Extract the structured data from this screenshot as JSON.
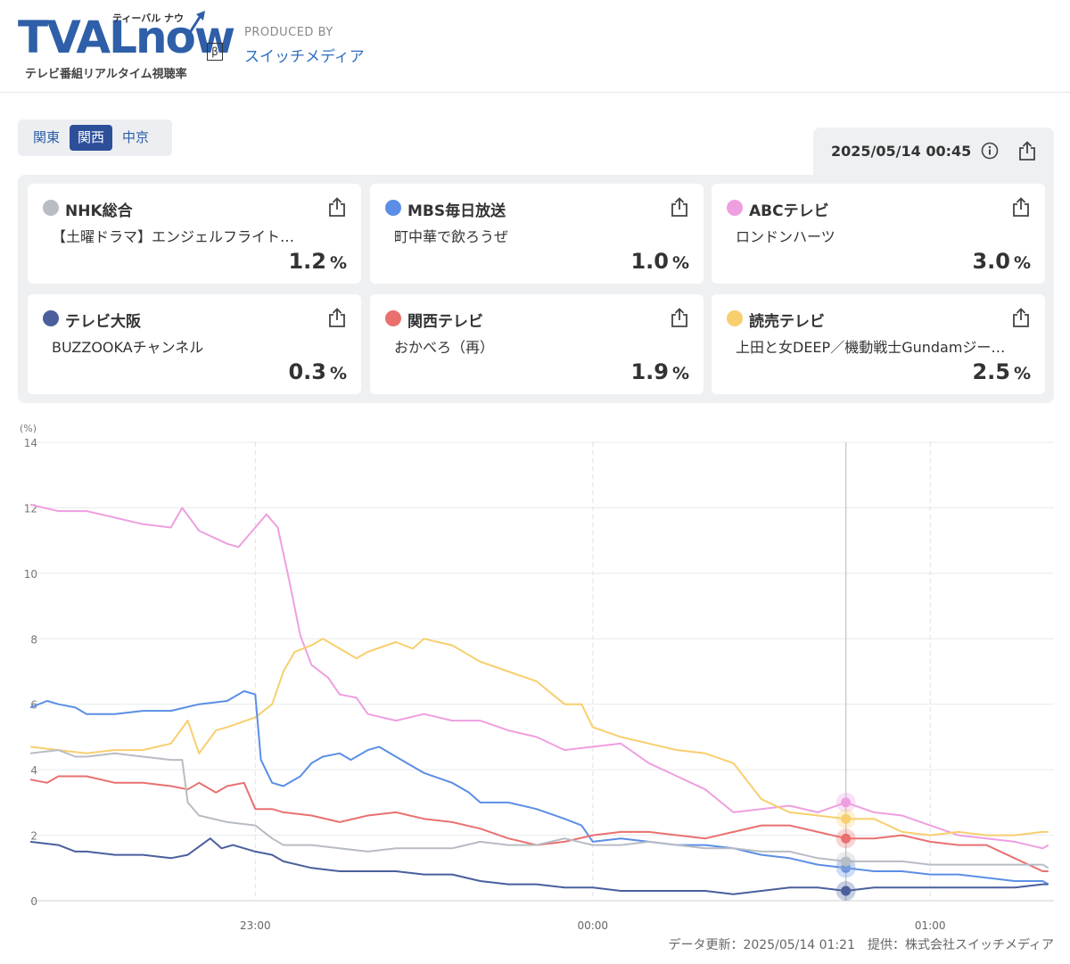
{
  "header": {
    "logo_text": "TVALnow",
    "logo_ruby": "ティーバル ナウ",
    "logo_beta": "β",
    "logo_sub": "テレビ番組リアルタイム視聴率",
    "produced_by": "PRODUCED BY",
    "producer": "スイッチメディア"
  },
  "regions": [
    {
      "label": "関東",
      "active": false
    },
    {
      "label": "関西",
      "active": true
    },
    {
      "label": "中京",
      "active": false
    }
  ],
  "datetime": "2025/05/14 00:45",
  "channels": [
    {
      "name": "NHK総合",
      "program": "【土曜ドラマ】エンジェルフライト…",
      "rating": "1.2",
      "unit": "%",
      "color": "#b8bcc4"
    },
    {
      "name": "MBS毎日放送",
      "program": "町中華で飲ろうぜ",
      "rating": "1.0",
      "unit": "%",
      "color": "#5b8ee6"
    },
    {
      "name": "ABCテレビ",
      "program": "ロンドンハーツ",
      "rating": "3.0",
      "unit": "%",
      "color": "#ee9fe0"
    },
    {
      "name": "テレビ大阪",
      "program": "BUZZOOKAチャンネル",
      "rating": "0.3",
      "unit": "%",
      "color": "#4a5f9c"
    },
    {
      "name": "関西テレビ",
      "program": "おかべろ（再）",
      "rating": "1.9",
      "unit": "%",
      "color": "#ea7070"
    },
    {
      "name": "読売テレビ",
      "program": "上田と女DEEP／機動戦士Gundamジー…",
      "rating": "2.5",
      "unit": "%",
      "color": "#f7cf6e"
    }
  ],
  "footer": "データ更新：2025/05/14 01:21　提供：株式会社スイッチメディア",
  "chart_data": {
    "type": "line",
    "ylabel": "(%)",
    "ylim": [
      0,
      14
    ],
    "yticks": [
      0,
      2,
      4,
      6,
      8,
      10,
      12,
      14
    ],
    "x_range": [
      "22:20",
      "01:22"
    ],
    "x_ticks": [
      "23:00",
      "00:00",
      "01:00"
    ],
    "cursor_time": "00:45",
    "series": [
      {
        "name": "ABCテレビ",
        "color": "#ee9fe0",
        "points": [
          [
            "22:20",
            12.1
          ],
          [
            "22:25",
            11.9
          ],
          [
            "22:30",
            11.9
          ],
          [
            "22:35",
            11.7
          ],
          [
            "22:40",
            11.5
          ],
          [
            "22:45",
            11.4
          ],
          [
            "22:47",
            12.0
          ],
          [
            "22:50",
            11.3
          ],
          [
            "22:55",
            10.9
          ],
          [
            "22:57",
            10.8
          ],
          [
            "23:00",
            11.4
          ],
          [
            "23:02",
            11.8
          ],
          [
            "23:04",
            11.4
          ],
          [
            "23:06",
            9.8
          ],
          [
            "23:08",
            8.1
          ],
          [
            "23:10",
            7.2
          ],
          [
            "23:13",
            6.8
          ],
          [
            "23:15",
            6.3
          ],
          [
            "23:18",
            6.2
          ],
          [
            "23:20",
            5.7
          ],
          [
            "23:25",
            5.5
          ],
          [
            "23:30",
            5.7
          ],
          [
            "23:35",
            5.5
          ],
          [
            "23:40",
            5.5
          ],
          [
            "23:45",
            5.2
          ],
          [
            "23:50",
            5.0
          ],
          [
            "23:55",
            4.6
          ],
          [
            "00:00",
            4.7
          ],
          [
            "00:05",
            4.8
          ],
          [
            "00:10",
            4.2
          ],
          [
            "00:15",
            3.8
          ],
          [
            "00:20",
            3.4
          ],
          [
            "00:25",
            2.7
          ],
          [
            "00:30",
            2.8
          ],
          [
            "00:35",
            2.9
          ],
          [
            "00:40",
            2.7
          ],
          [
            "00:45",
            3.0
          ],
          [
            "00:50",
            2.7
          ],
          [
            "00:55",
            2.6
          ],
          [
            "01:00",
            2.3
          ],
          [
            "01:05",
            2.0
          ],
          [
            "01:10",
            1.9
          ],
          [
            "01:15",
            1.8
          ],
          [
            "01:20",
            1.6
          ],
          [
            "01:21",
            1.7
          ]
        ]
      },
      {
        "name": "読売テレビ",
        "color": "#f7cf6e",
        "points": [
          [
            "22:20",
            4.7
          ],
          [
            "22:25",
            4.6
          ],
          [
            "22:30",
            4.5
          ],
          [
            "22:35",
            4.6
          ],
          [
            "22:40",
            4.6
          ],
          [
            "22:45",
            4.8
          ],
          [
            "22:48",
            5.5
          ],
          [
            "22:50",
            4.5
          ],
          [
            "22:53",
            5.2
          ],
          [
            "22:55",
            5.3
          ],
          [
            "23:00",
            5.6
          ],
          [
            "23:03",
            6.0
          ],
          [
            "23:05",
            7.0
          ],
          [
            "23:07",
            7.6
          ],
          [
            "23:10",
            7.8
          ],
          [
            "23:12",
            8.0
          ],
          [
            "23:15",
            7.7
          ],
          [
            "23:18",
            7.4
          ],
          [
            "23:20",
            7.6
          ],
          [
            "23:25",
            7.9
          ],
          [
            "23:28",
            7.7
          ],
          [
            "23:30",
            8.0
          ],
          [
            "23:35",
            7.8
          ],
          [
            "23:40",
            7.3
          ],
          [
            "23:45",
            7.0
          ],
          [
            "23:50",
            6.7
          ],
          [
            "23:55",
            6.0
          ],
          [
            "23:58",
            6.0
          ],
          [
            "00:00",
            5.3
          ],
          [
            "00:05",
            5.0
          ],
          [
            "00:10",
            4.8
          ],
          [
            "00:15",
            4.6
          ],
          [
            "00:20",
            4.5
          ],
          [
            "00:25",
            4.2
          ],
          [
            "00:30",
            3.1
          ],
          [
            "00:35",
            2.7
          ],
          [
            "00:40",
            2.6
          ],
          [
            "00:45",
            2.5
          ],
          [
            "00:50",
            2.5
          ],
          [
            "00:55",
            2.1
          ],
          [
            "01:00",
            2.0
          ],
          [
            "01:05",
            2.1
          ],
          [
            "01:10",
            2.0
          ],
          [
            "01:15",
            2.0
          ],
          [
            "01:20",
            2.1
          ],
          [
            "01:21",
            2.1
          ]
        ]
      },
      {
        "name": "MBS毎日放送",
        "color": "#5b8ee6",
        "points": [
          [
            "22:20",
            5.9
          ],
          [
            "22:23",
            6.1
          ],
          [
            "22:25",
            6.0
          ],
          [
            "22:28",
            5.9
          ],
          [
            "22:30",
            5.7
          ],
          [
            "22:35",
            5.7
          ],
          [
            "22:40",
            5.8
          ],
          [
            "22:45",
            5.8
          ],
          [
            "22:50",
            6.0
          ],
          [
            "22:55",
            6.1
          ],
          [
            "22:58",
            6.4
          ],
          [
            "23:00",
            6.3
          ],
          [
            "23:01",
            4.3
          ],
          [
            "23:03",
            3.6
          ],
          [
            "23:05",
            3.5
          ],
          [
            "23:08",
            3.8
          ],
          [
            "23:10",
            4.2
          ],
          [
            "23:12",
            4.4
          ],
          [
            "23:15",
            4.5
          ],
          [
            "23:17",
            4.3
          ],
          [
            "23:20",
            4.6
          ],
          [
            "23:22",
            4.7
          ],
          [
            "23:25",
            4.4
          ],
          [
            "23:28",
            4.1
          ],
          [
            "23:30",
            3.9
          ],
          [
            "23:35",
            3.6
          ],
          [
            "23:38",
            3.3
          ],
          [
            "23:40",
            3.0
          ],
          [
            "23:45",
            3.0
          ],
          [
            "23:50",
            2.8
          ],
          [
            "23:55",
            2.5
          ],
          [
            "23:58",
            2.3
          ],
          [
            "00:00",
            1.8
          ],
          [
            "00:05",
            1.9
          ],
          [
            "00:10",
            1.8
          ],
          [
            "00:15",
            1.7
          ],
          [
            "00:20",
            1.7
          ],
          [
            "00:25",
            1.6
          ],
          [
            "00:30",
            1.4
          ],
          [
            "00:35",
            1.3
          ],
          [
            "00:40",
            1.1
          ],
          [
            "00:45",
            1.0
          ],
          [
            "00:50",
            0.9
          ],
          [
            "00:55",
            0.9
          ],
          [
            "01:00",
            0.8
          ],
          [
            "01:05",
            0.8
          ],
          [
            "01:10",
            0.7
          ],
          [
            "01:15",
            0.6
          ],
          [
            "01:20",
            0.6
          ],
          [
            "01:21",
            0.5
          ]
        ]
      },
      {
        "name": "関西テレビ",
        "color": "#ea7070",
        "points": [
          [
            "22:20",
            3.7
          ],
          [
            "22:23",
            3.6
          ],
          [
            "22:25",
            3.8
          ],
          [
            "22:28",
            3.8
          ],
          [
            "22:30",
            3.8
          ],
          [
            "22:35",
            3.6
          ],
          [
            "22:40",
            3.6
          ],
          [
            "22:45",
            3.5
          ],
          [
            "22:48",
            3.4
          ],
          [
            "22:50",
            3.6
          ],
          [
            "22:53",
            3.3
          ],
          [
            "22:55",
            3.5
          ],
          [
            "22:58",
            3.6
          ],
          [
            "23:00",
            2.8
          ],
          [
            "23:03",
            2.8
          ],
          [
            "23:05",
            2.7
          ],
          [
            "23:10",
            2.6
          ],
          [
            "23:15",
            2.4
          ],
          [
            "23:20",
            2.6
          ],
          [
            "23:25",
            2.7
          ],
          [
            "23:30",
            2.5
          ],
          [
            "23:35",
            2.4
          ],
          [
            "23:40",
            2.2
          ],
          [
            "23:45",
            1.9
          ],
          [
            "23:50",
            1.7
          ],
          [
            "23:55",
            1.8
          ],
          [
            "00:00",
            2.0
          ],
          [
            "00:05",
            2.1
          ],
          [
            "00:10",
            2.1
          ],
          [
            "00:15",
            2.0
          ],
          [
            "00:20",
            1.9
          ],
          [
            "00:25",
            2.1
          ],
          [
            "00:30",
            2.3
          ],
          [
            "00:35",
            2.3
          ],
          [
            "00:40",
            2.1
          ],
          [
            "00:45",
            1.9
          ],
          [
            "00:50",
            1.9
          ],
          [
            "00:55",
            2.0
          ],
          [
            "01:00",
            1.8
          ],
          [
            "01:05",
            1.7
          ],
          [
            "01:10",
            1.7
          ],
          [
            "01:15",
            1.3
          ],
          [
            "01:20",
            0.9
          ],
          [
            "01:21",
            0.9
          ]
        ]
      },
      {
        "name": "NHK総合",
        "color": "#b8bcc4",
        "points": [
          [
            "22:20",
            4.5
          ],
          [
            "22:25",
            4.6
          ],
          [
            "22:28",
            4.4
          ],
          [
            "22:30",
            4.4
          ],
          [
            "22:35",
            4.5
          ],
          [
            "22:40",
            4.4
          ],
          [
            "22:45",
            4.3
          ],
          [
            "22:47",
            4.3
          ],
          [
            "22:48",
            3.0
          ],
          [
            "22:50",
            2.6
          ],
          [
            "22:55",
            2.4
          ],
          [
            "23:00",
            2.3
          ],
          [
            "23:03",
            1.9
          ],
          [
            "23:05",
            1.7
          ],
          [
            "23:10",
            1.7
          ],
          [
            "23:15",
            1.6
          ],
          [
            "23:20",
            1.5
          ],
          [
            "23:25",
            1.6
          ],
          [
            "23:30",
            1.6
          ],
          [
            "23:35",
            1.6
          ],
          [
            "23:40",
            1.8
          ],
          [
            "23:45",
            1.7
          ],
          [
            "23:50",
            1.7
          ],
          [
            "23:55",
            1.9
          ],
          [
            "00:00",
            1.7
          ],
          [
            "00:05",
            1.7
          ],
          [
            "00:10",
            1.8
          ],
          [
            "00:15",
            1.7
          ],
          [
            "00:20",
            1.6
          ],
          [
            "00:25",
            1.6
          ],
          [
            "00:30",
            1.5
          ],
          [
            "00:35",
            1.5
          ],
          [
            "00:40",
            1.3
          ],
          [
            "00:45",
            1.2
          ],
          [
            "00:50",
            1.2
          ],
          [
            "00:55",
            1.2
          ],
          [
            "01:00",
            1.1
          ],
          [
            "01:05",
            1.1
          ],
          [
            "01:10",
            1.1
          ],
          [
            "01:15",
            1.1
          ],
          [
            "01:20",
            1.1
          ],
          [
            "01:21",
            1.0
          ]
        ]
      },
      {
        "name": "テレビ大阪",
        "color": "#4a5f9c",
        "points": [
          [
            "22:20",
            1.8
          ],
          [
            "22:25",
            1.7
          ],
          [
            "22:28",
            1.5
          ],
          [
            "22:30",
            1.5
          ],
          [
            "22:35",
            1.4
          ],
          [
            "22:40",
            1.4
          ],
          [
            "22:45",
            1.3
          ],
          [
            "22:48",
            1.4
          ],
          [
            "22:52",
            1.9
          ],
          [
            "22:54",
            1.6
          ],
          [
            "22:56",
            1.7
          ],
          [
            "23:00",
            1.5
          ],
          [
            "23:03",
            1.4
          ],
          [
            "23:05",
            1.2
          ],
          [
            "23:10",
            1.0
          ],
          [
            "23:15",
            0.9
          ],
          [
            "23:20",
            0.9
          ],
          [
            "23:25",
            0.9
          ],
          [
            "23:30",
            0.8
          ],
          [
            "23:35",
            0.8
          ],
          [
            "23:40",
            0.6
          ],
          [
            "23:45",
            0.5
          ],
          [
            "23:50",
            0.5
          ],
          [
            "23:55",
            0.4
          ],
          [
            "00:00",
            0.4
          ],
          [
            "00:05",
            0.3
          ],
          [
            "00:10",
            0.3
          ],
          [
            "00:15",
            0.3
          ],
          [
            "00:20",
            0.3
          ],
          [
            "00:25",
            0.2
          ],
          [
            "00:30",
            0.3
          ],
          [
            "00:35",
            0.4
          ],
          [
            "00:40",
            0.4
          ],
          [
            "00:45",
            0.3
          ],
          [
            "00:50",
            0.4
          ],
          [
            "00:55",
            0.4
          ],
          [
            "01:00",
            0.4
          ],
          [
            "01:05",
            0.4
          ],
          [
            "01:10",
            0.4
          ],
          [
            "01:15",
            0.4
          ],
          [
            "01:20",
            0.5
          ],
          [
            "01:21",
            0.5
          ]
        ]
      }
    ]
  }
}
